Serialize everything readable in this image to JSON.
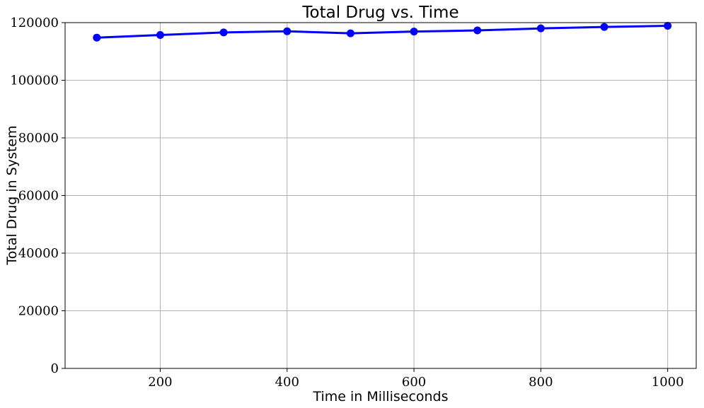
{
  "chart_data": {
    "type": "line",
    "title": "Total Drug vs. Time",
    "xlabel": "Time in Milliseconds",
    "ylabel": "Total Drug in System",
    "xlim": [
      50,
      1045
    ],
    "ylim": [
      0,
      120000
    ],
    "xticks": [
      200,
      400,
      600,
      800,
      1000
    ],
    "yticks": [
      0,
      20000,
      40000,
      60000,
      80000,
      100000,
      120000
    ],
    "xtick_labels": [
      "200",
      "400",
      "600",
      "800",
      "1000"
    ],
    "ytick_labels": [
      "0",
      "20000",
      "40000",
      "60000",
      "80000",
      "100000",
      "120000"
    ],
    "grid": true,
    "series": [
      {
        "color": "#0000ff",
        "marker": "circle",
        "x": [
          100,
          200,
          300,
          400,
          500,
          600,
          700,
          800,
          900,
          1000
        ],
        "y": [
          114800,
          115700,
          116600,
          117000,
          116300,
          116900,
          117300,
          118000,
          118500,
          118900
        ]
      }
    ]
  }
}
